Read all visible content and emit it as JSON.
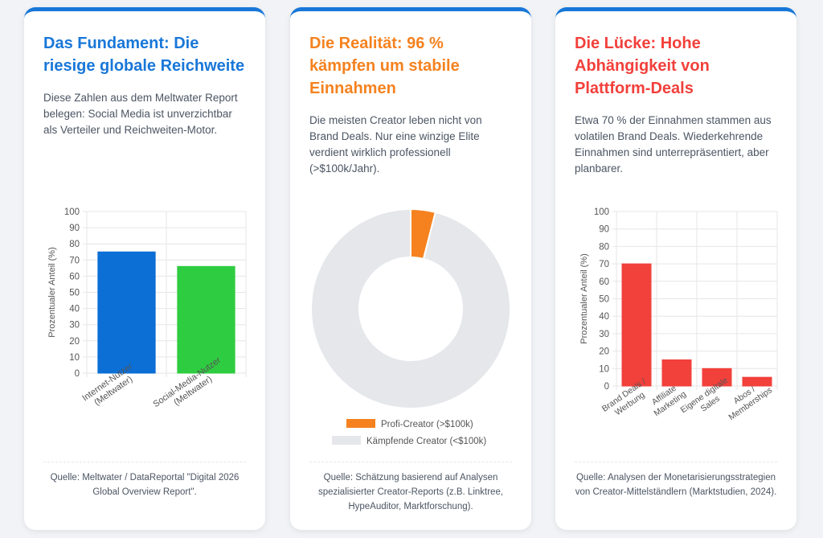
{
  "cards": [
    {
      "title": "Das Fundament: Die riesige globale Reichweite",
      "title_color": "#1877d8",
      "description": "Diese Zahlen aus dem Meltwater Report belegen: Social Media ist unverzichtbar als Verteiler und Reichweiten-Motor.",
      "source": "Quelle: Meltwater / DataReportal \"Digital 2026 Global Overview Report\"."
    },
    {
      "title": "Die Realität: 96 % kämpfen um stabile Einnahmen",
      "title_color": "#f5821f",
      "description": "Die meisten Creator leben nicht von Brand Deals. Nur eine winzige Elite verdient wirklich professionell (>$100k/Jahr).",
      "source": "Quelle: Schätzung basierend auf Analysen spezialisierter Creator-Reports (z.B. Linktree, HypeAuditor, Marktforschung)."
    },
    {
      "title": "Die Lücke: Hohe Abhängigkeit von Plattform-Deals",
      "title_color": "#f2403b",
      "description": "Etwa 70 % der Einnahmen stammen aus volatilen Brand Deals. Wiederkehrende Einnahmen sind unterrepräsentiert, aber planbarer.",
      "source": "Quelle: Analysen der Monetarisierungsstrategien von Creator-Mittelständlern (Marktstudien, 2024)."
    }
  ],
  "chart_data": [
    {
      "type": "bar",
      "categories": [
        [
          "Internet-Nutzer",
          "(Meltwater)"
        ],
        [
          "Social-Media-Nutzer",
          "(Meltwater)"
        ]
      ],
      "values": [
        75,
        66
      ],
      "colors": [
        "#0b6fd6",
        "#2ecc40"
      ],
      "ylabel": "Prozentualer Anteil (%)",
      "ylim": [
        0,
        100
      ],
      "yticks": [
        0,
        10,
        20,
        30,
        40,
        50,
        60,
        70,
        80,
        90,
        100
      ],
      "grid": true
    },
    {
      "type": "pie",
      "labels": [
        "Profi-Creator (>$100k)",
        "Kämpfende Creator (<$100k)"
      ],
      "values": [
        4,
        96
      ],
      "colors": [
        "#f5821f",
        "#e5e7eb"
      ],
      "legend": "bottom"
    },
    {
      "type": "bar",
      "categories": [
        [
          "Brand Deals /",
          "Werbung"
        ],
        [
          "Affiliate",
          "Marketing"
        ],
        [
          "Eigene digitale",
          "Sales"
        ],
        [
          "Abos /",
          "Memberships"
        ]
      ],
      "values": [
        70,
        15,
        10,
        5
      ],
      "colors": [
        "#f2403b",
        "#f2403b",
        "#f2403b",
        "#f2403b"
      ],
      "ylabel": "Prozentualer Anteil (%)",
      "ylim": [
        0,
        100
      ],
      "yticks": [
        0,
        10,
        20,
        30,
        40,
        50,
        60,
        70,
        80,
        90,
        100
      ],
      "grid": true
    }
  ]
}
